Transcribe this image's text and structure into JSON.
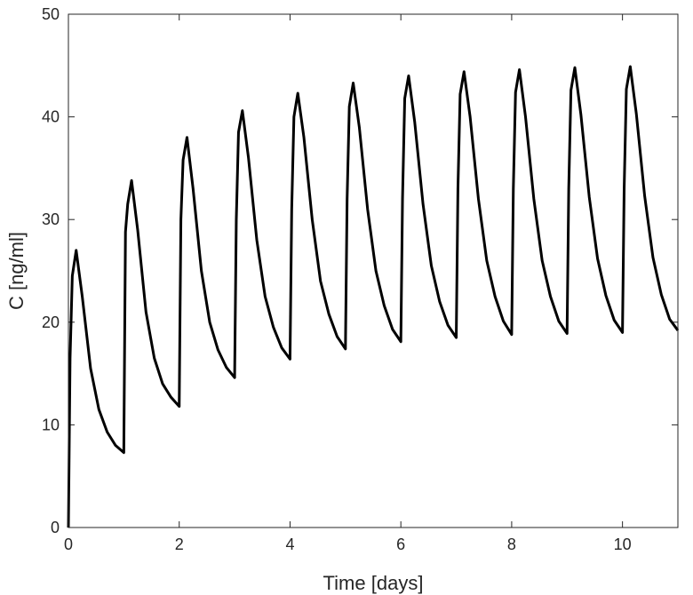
{
  "chart_data": {
    "type": "line",
    "title": "",
    "xlabel": "Time [days]",
    "ylabel": "C [ng/ml]",
    "xlim": [
      0,
      11
    ],
    "ylim": [
      0,
      50
    ],
    "x_ticks": [
      0,
      2,
      4,
      6,
      8,
      10
    ],
    "y_ticks": [
      0,
      10,
      20,
      30,
      40,
      50
    ],
    "grid": false,
    "legend": "none",
    "line_color": "#000000",
    "series": [
      {
        "x": [
          0,
          0.03,
          0.07,
          0.14,
          0.25,
          0.4,
          0.55,
          0.7,
          0.85,
          1.0,
          1.0,
          1.03,
          1.07,
          1.14,
          1.25,
          1.4,
          1.55,
          1.7,
          1.85,
          2.0,
          2.0,
          2.03,
          2.07,
          2.14,
          2.25,
          2.4,
          2.55,
          2.7,
          2.85,
          3.0,
          3.0,
          3.03,
          3.07,
          3.14,
          3.25,
          3.4,
          3.55,
          3.7,
          3.85,
          4.0,
          4.0,
          4.03,
          4.07,
          4.14,
          4.25,
          4.4,
          4.55,
          4.7,
          4.85,
          5.0,
          5.0,
          5.03,
          5.07,
          5.14,
          5.25,
          5.4,
          5.55,
          5.7,
          5.85,
          6.0,
          6.0,
          6.03,
          6.07,
          6.14,
          6.25,
          6.4,
          6.55,
          6.7,
          6.85,
          7.0,
          7.0,
          7.03,
          7.07,
          7.14,
          7.25,
          7.4,
          7.55,
          7.7,
          7.85,
          8.0,
          8.0,
          8.03,
          8.07,
          8.14,
          8.25,
          8.4,
          8.55,
          8.7,
          8.85,
          9.0,
          9.0,
          9.03,
          9.07,
          9.14,
          9.25,
          9.4,
          9.55,
          9.7,
          9.85,
          10.0,
          10.0,
          10.03,
          10.07,
          10.14,
          10.25,
          10.4,
          10.55,
          10.7,
          10.85,
          11.0
        ],
        "y": [
          0,
          16.5,
          24.5,
          27.0,
          22.5,
          15.5,
          11.5,
          9.3,
          8.0,
          7.3,
          7.5,
          28.8,
          31.5,
          33.8,
          29.0,
          21.0,
          16.5,
          14.0,
          12.7,
          11.8,
          12.0,
          30.0,
          35.8,
          38.0,
          33.0,
          25.0,
          20.0,
          17.3,
          15.6,
          14.6,
          14.8,
          30.0,
          38.5,
          40.6,
          36.0,
          28.0,
          22.5,
          19.5,
          17.5,
          16.4,
          16.6,
          31.0,
          40.0,
          42.3,
          38.0,
          30.0,
          24.0,
          20.8,
          18.6,
          17.4,
          17.6,
          32.0,
          41.0,
          43.3,
          39.0,
          31.0,
          25.0,
          21.6,
          19.3,
          18.1,
          18.3,
          32.0,
          41.8,
          44.0,
          39.5,
          31.5,
          25.5,
          22.0,
          19.7,
          18.5,
          18.7,
          33.0,
          42.2,
          44.4,
          40.0,
          32.0,
          26.0,
          22.5,
          20.1,
          18.8,
          19.0,
          33.0,
          42.4,
          44.6,
          40.0,
          32.0,
          26.0,
          22.5,
          20.1,
          18.9,
          19.1,
          33.0,
          42.6,
          44.8,
          40.2,
          32.2,
          26.2,
          22.6,
          20.2,
          19.0,
          19.2,
          33.0,
          42.7,
          44.9,
          40.3,
          32.3,
          26.3,
          22.7,
          20.3,
          19.2
        ]
      }
    ]
  }
}
